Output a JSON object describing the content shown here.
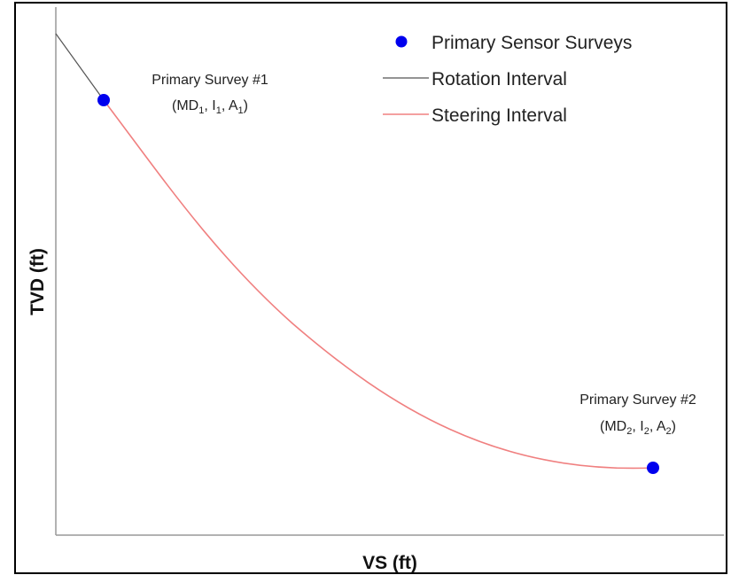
{
  "axes": {
    "xlabel": "VS (ft)",
    "ylabel": "TVD (ft)"
  },
  "legend": {
    "survey_label": "Primary Sensor Surveys",
    "rotation_label": "Rotation Interval",
    "steering_label": "Steering Interval"
  },
  "colors": {
    "survey": "#0000ee",
    "rotation": "#555555",
    "steering": "#f08080",
    "axis": "#999999",
    "frame": "#000000"
  },
  "surveys": [
    {
      "title": "Primary Survey #1",
      "md": "MD",
      "md_sub": "1",
      "i": "I",
      "i_sub": "1",
      "a": "A",
      "a_sub": "1"
    },
    {
      "title": "Primary Survey #2",
      "md": "MD",
      "md_sub": "2",
      "i": "I",
      "i_sub": "2",
      "a": "A",
      "a_sub": "2"
    }
  ]
}
